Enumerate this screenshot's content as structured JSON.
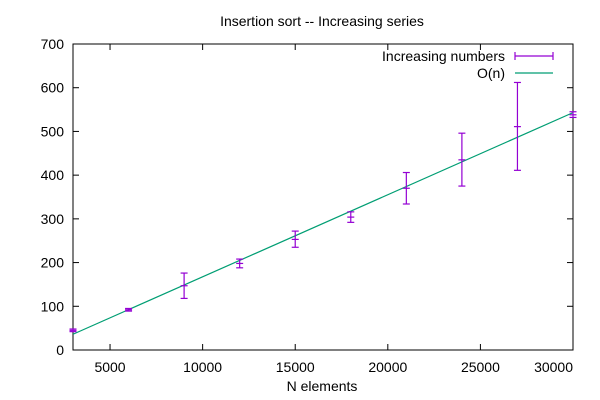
{
  "chart_data": {
    "type": "line",
    "title": "Insertion sort -- Increasing series",
    "xlabel": "N elements",
    "ylabel": "",
    "xlim": [
      3000,
      30000
    ],
    "ylim": [
      0,
      700
    ],
    "xticks": [
      5000,
      10000,
      15000,
      20000,
      25000,
      30000
    ],
    "yticks": [
      0,
      100,
      200,
      300,
      400,
      500,
      600,
      700
    ],
    "grid": false,
    "legend_position": "top-right",
    "series": [
      {
        "name": "Increasing numbers",
        "kind": "errorbars",
        "color": "#9400d3",
        "points": [
          {
            "x": 3000,
            "y": 45,
            "ylow": 42,
            "yhigh": 48
          },
          {
            "x": 6000,
            "y": 92,
            "ylow": 89,
            "yhigh": 95
          },
          {
            "x": 9000,
            "y": 147,
            "ylow": 118,
            "yhigh": 176
          },
          {
            "x": 12000,
            "y": 198,
            "ylow": 188,
            "yhigh": 208
          },
          {
            "x": 15000,
            "y": 253,
            "ylow": 235,
            "yhigh": 272
          },
          {
            "x": 18000,
            "y": 304,
            "ylow": 292,
            "yhigh": 316
          },
          {
            "x": 21000,
            "y": 370,
            "ylow": 334,
            "yhigh": 406
          },
          {
            "x": 24000,
            "y": 435,
            "ylow": 375,
            "yhigh": 496
          },
          {
            "x": 27000,
            "y": 511,
            "ylow": 411,
            "yhigh": 612
          },
          {
            "x": 30000,
            "y": 538,
            "ylow": 532,
            "yhigh": 545
          }
        ]
      },
      {
        "name": "O(n)",
        "kind": "line",
        "color": "#009e73",
        "x": [
          3000,
          30000
        ],
        "y": [
          36,
          543
        ]
      }
    ]
  }
}
